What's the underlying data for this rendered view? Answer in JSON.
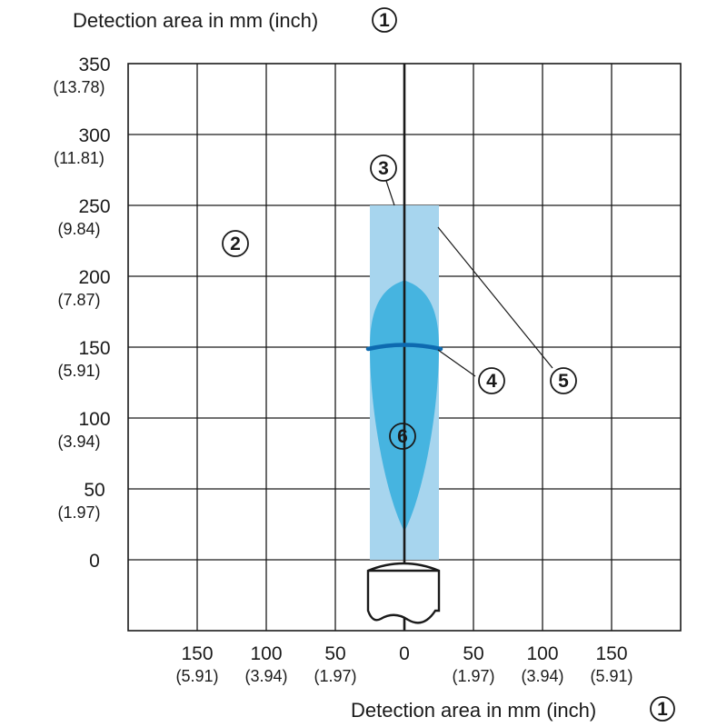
{
  "titles": {
    "top": "Detection area in mm (inch)",
    "bottom": "Detection area in mm (inch)",
    "marker": "1"
  },
  "y_ticks": [
    {
      "mm": "350",
      "in": "(13.78)"
    },
    {
      "mm": "300",
      "in": "(11.81)"
    },
    {
      "mm": "250",
      "in": "(9.84)"
    },
    {
      "mm": "200",
      "in": "(7.87)"
    },
    {
      "mm": "150",
      "in": "(5.91)"
    },
    {
      "mm": "100",
      "in": "(3.94)"
    },
    {
      "mm": "50",
      "in": "(1.97)"
    },
    {
      "mm": "0",
      "in": ""
    }
  ],
  "x_ticks": [
    {
      "mm": "150",
      "in": "(5.91)"
    },
    {
      "mm": "100",
      "in": "(3.94)"
    },
    {
      "mm": "50",
      "in": "(1.97)"
    },
    {
      "mm": "0",
      "in": ""
    },
    {
      "mm": "50",
      "in": "(1.97)"
    },
    {
      "mm": "100",
      "in": "(3.94)"
    },
    {
      "mm": "150",
      "in": "(5.91)"
    }
  ],
  "callouts": {
    "c2": "2",
    "c3": "3",
    "c4": "4",
    "c5": "5",
    "c6": "6"
  },
  "colors": {
    "light_field": "#a7d5ee",
    "detection_zone": "#46b4e0",
    "focus_line": "#0d6ab0",
    "lines": "#1a1a1a"
  },
  "chart_data": {
    "type": "area",
    "units": "mm (inch)",
    "x_range": [
      -200,
      200
    ],
    "y_range": [
      -50,
      350
    ],
    "grid": true,
    "rectangular_field": {
      "x": [
        -25,
        25
      ],
      "y": [
        0,
        250
      ]
    },
    "detection_zone": {
      "y_tip_bottom": 20,
      "y_tip_top": 197,
      "max_half_width": 25,
      "y_at_max_width": 150
    },
    "focus_line_y": 150
  }
}
